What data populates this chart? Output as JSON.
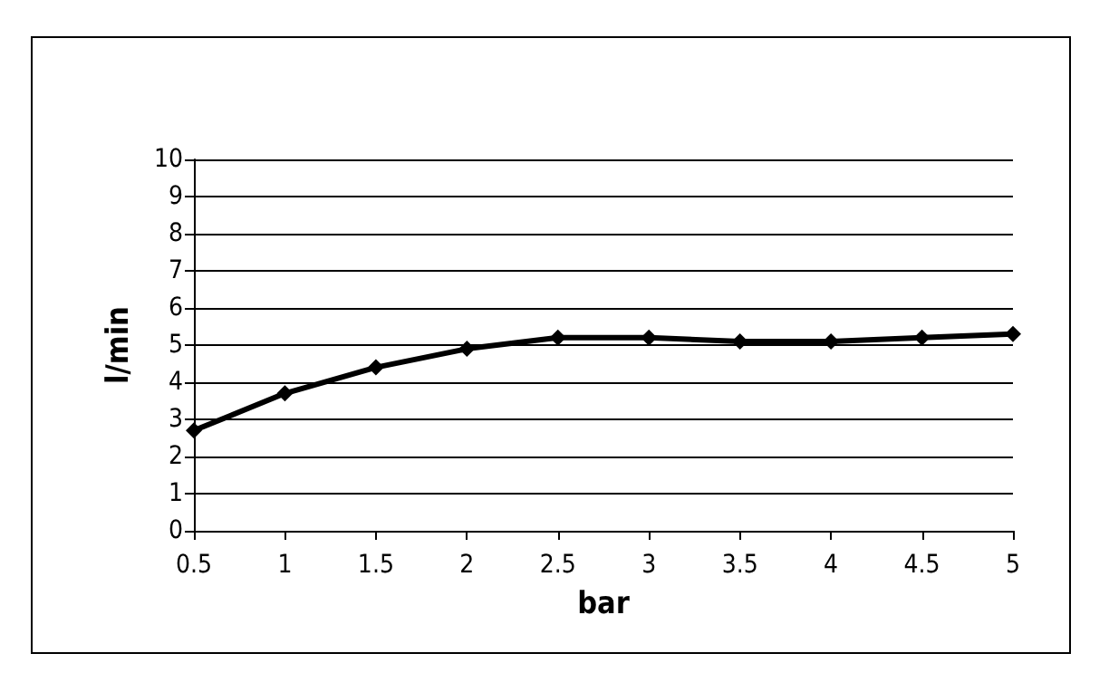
{
  "chart_data": {
    "type": "line",
    "xlabel": "bar",
    "ylabel": "l/min",
    "categories": [
      "0.5",
      "1",
      "1.5",
      "2",
      "2.5",
      "3",
      "3.5",
      "4",
      "4.5",
      "5"
    ],
    "series": [
      {
        "color": "#000000",
        "values": [
          2.7,
          3.7,
          4.4,
          4.9,
          5.2,
          5.2,
          5.1,
          5.1,
          5.2,
          5.3
        ]
      }
    ],
    "ylim": [
      0,
      10
    ],
    "yticks": [
      0,
      1,
      2,
      3,
      4,
      5,
      6,
      7,
      8,
      9,
      10
    ],
    "grid": "y",
    "marker": "diamond",
    "line_style": "solid"
  }
}
